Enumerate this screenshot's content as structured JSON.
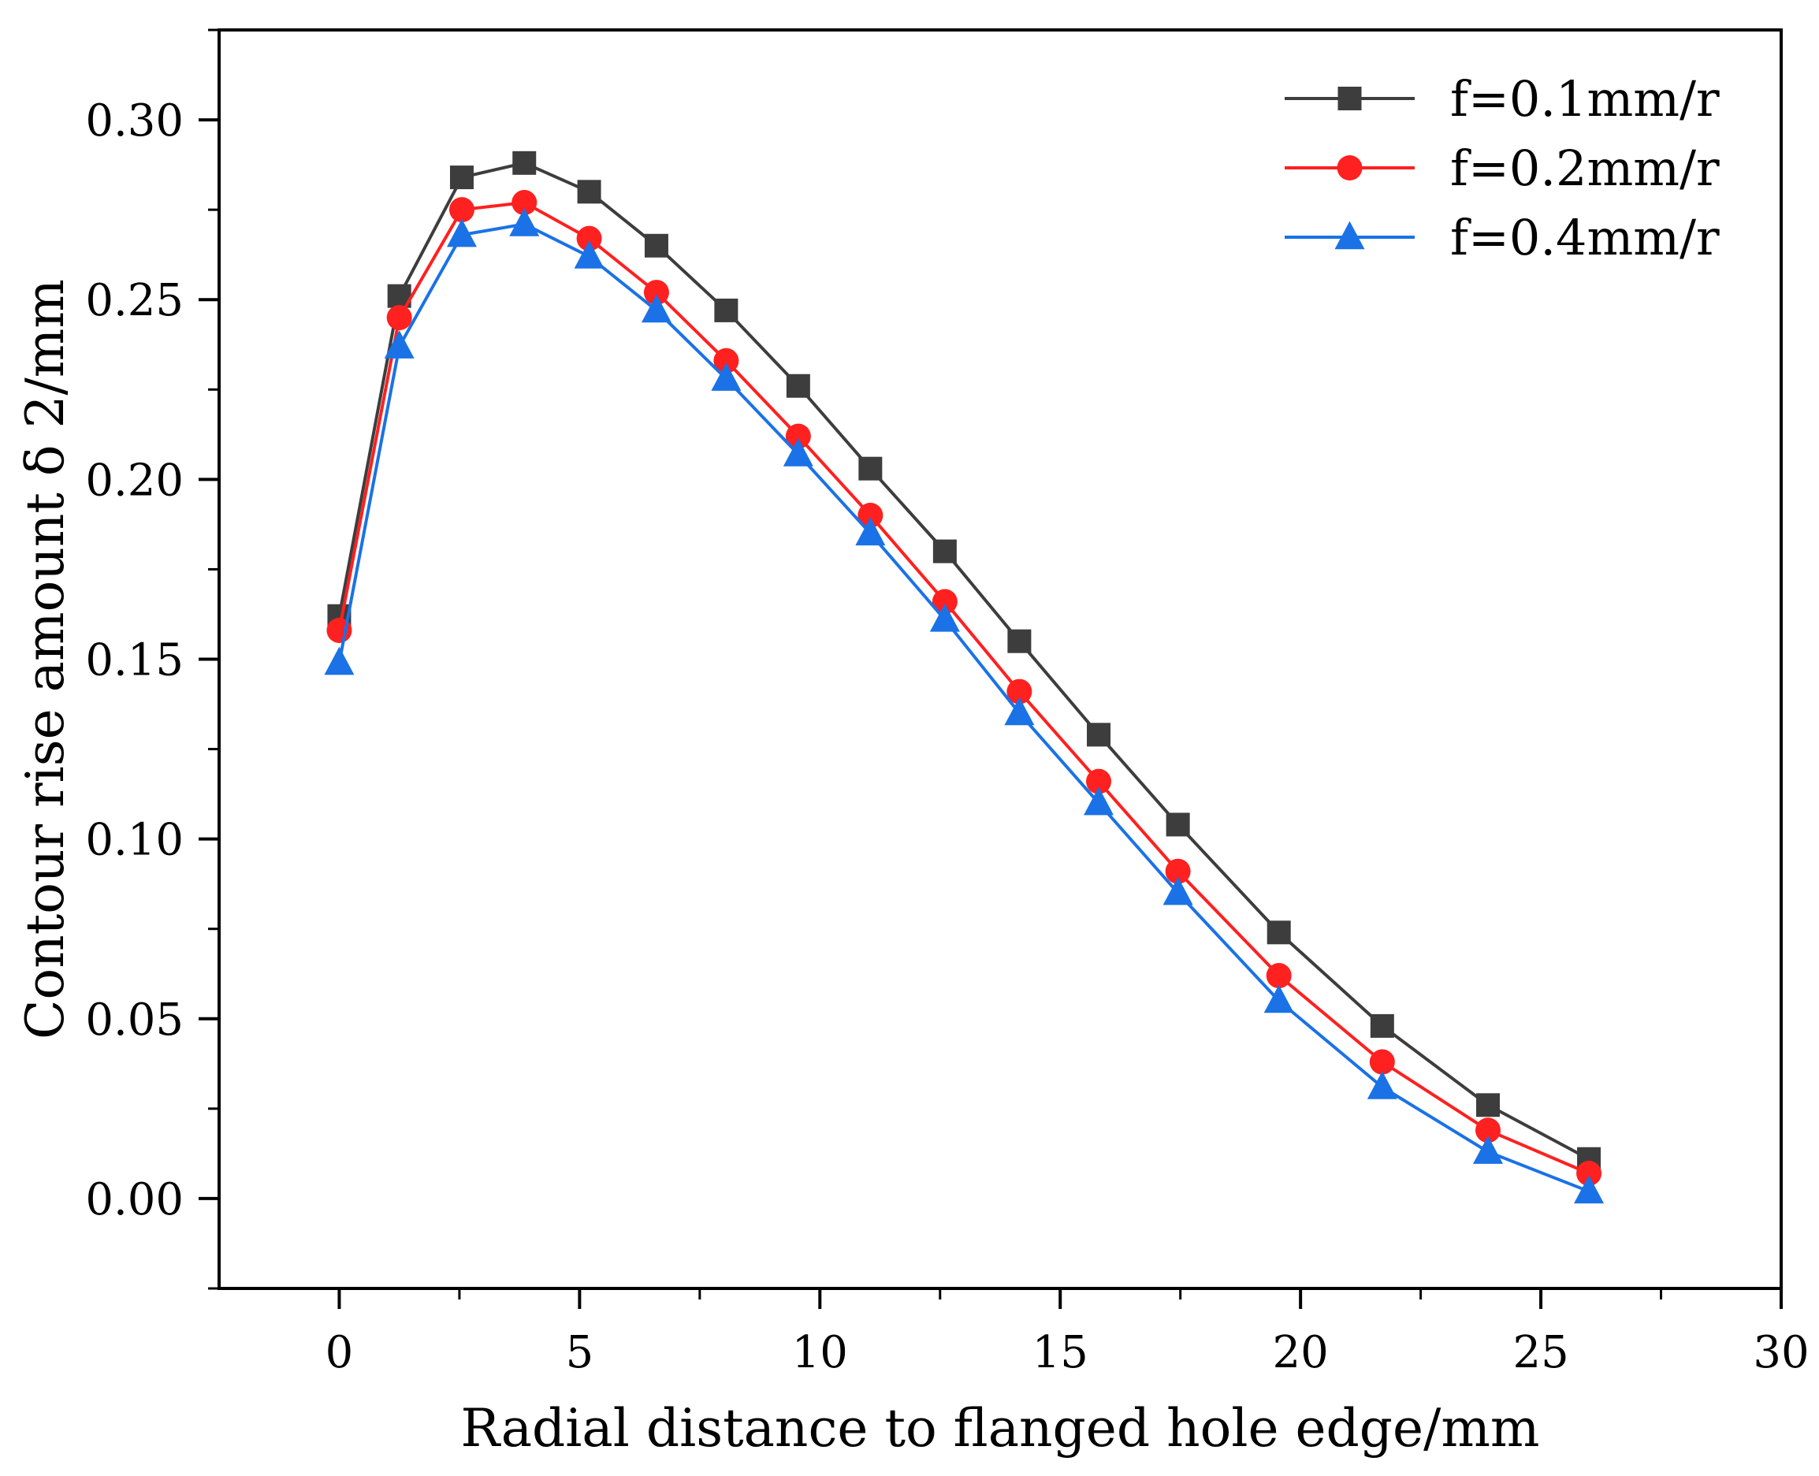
{
  "chart_data": {
    "type": "line",
    "title": "",
    "xlabel": "Radial distance to flanged hole edge/mm",
    "ylabel": "Contour rise amount δ 2/mm",
    "xlim": [
      -2.5,
      30
    ],
    "ylim": [
      -0.025,
      0.325
    ],
    "x_ticks": [
      "0",
      "5",
      "10",
      "15",
      "20",
      "25",
      "30"
    ],
    "y_ticks": [
      "0.00",
      "0.05",
      "0.10",
      "0.15",
      "0.20",
      "0.25",
      "0.30"
    ],
    "grid": false,
    "legend_position": "top-right",
    "x": [
      0,
      1.25,
      2.55,
      3.85,
      5.2,
      6.6,
      8.05,
      9.55,
      11.05,
      12.6,
      14.15,
      15.8,
      17.45,
      19.55,
      21.7,
      23.9,
      26
    ],
    "series": [
      {
        "name": "f=0.1mm/r",
        "color": "#3d3d3d",
        "marker": "square",
        "values": [
          0.162,
          0.251,
          0.284,
          0.288,
          0.28,
          0.265,
          0.247,
          0.226,
          0.203,
          0.18,
          0.155,
          0.129,
          0.104,
          0.074,
          0.048,
          0.026,
          0.011
        ]
      },
      {
        "name": "f=0.2mm/r",
        "color": "#ff2020",
        "marker": "circle",
        "values": [
          0.158,
          0.245,
          0.275,
          0.277,
          0.267,
          0.252,
          0.233,
          0.212,
          0.19,
          0.166,
          0.141,
          0.116,
          0.091,
          0.062,
          0.038,
          0.019,
          0.007
        ]
      },
      {
        "name": "f=0.4mm/r",
        "color": "#1a72e6",
        "marker": "triangle",
        "values": [
          0.149,
          0.237,
          0.268,
          0.271,
          0.262,
          0.247,
          0.228,
          0.207,
          0.185,
          0.161,
          0.135,
          0.11,
          0.085,
          0.055,
          0.031,
          0.013,
          0.002
        ]
      }
    ]
  }
}
